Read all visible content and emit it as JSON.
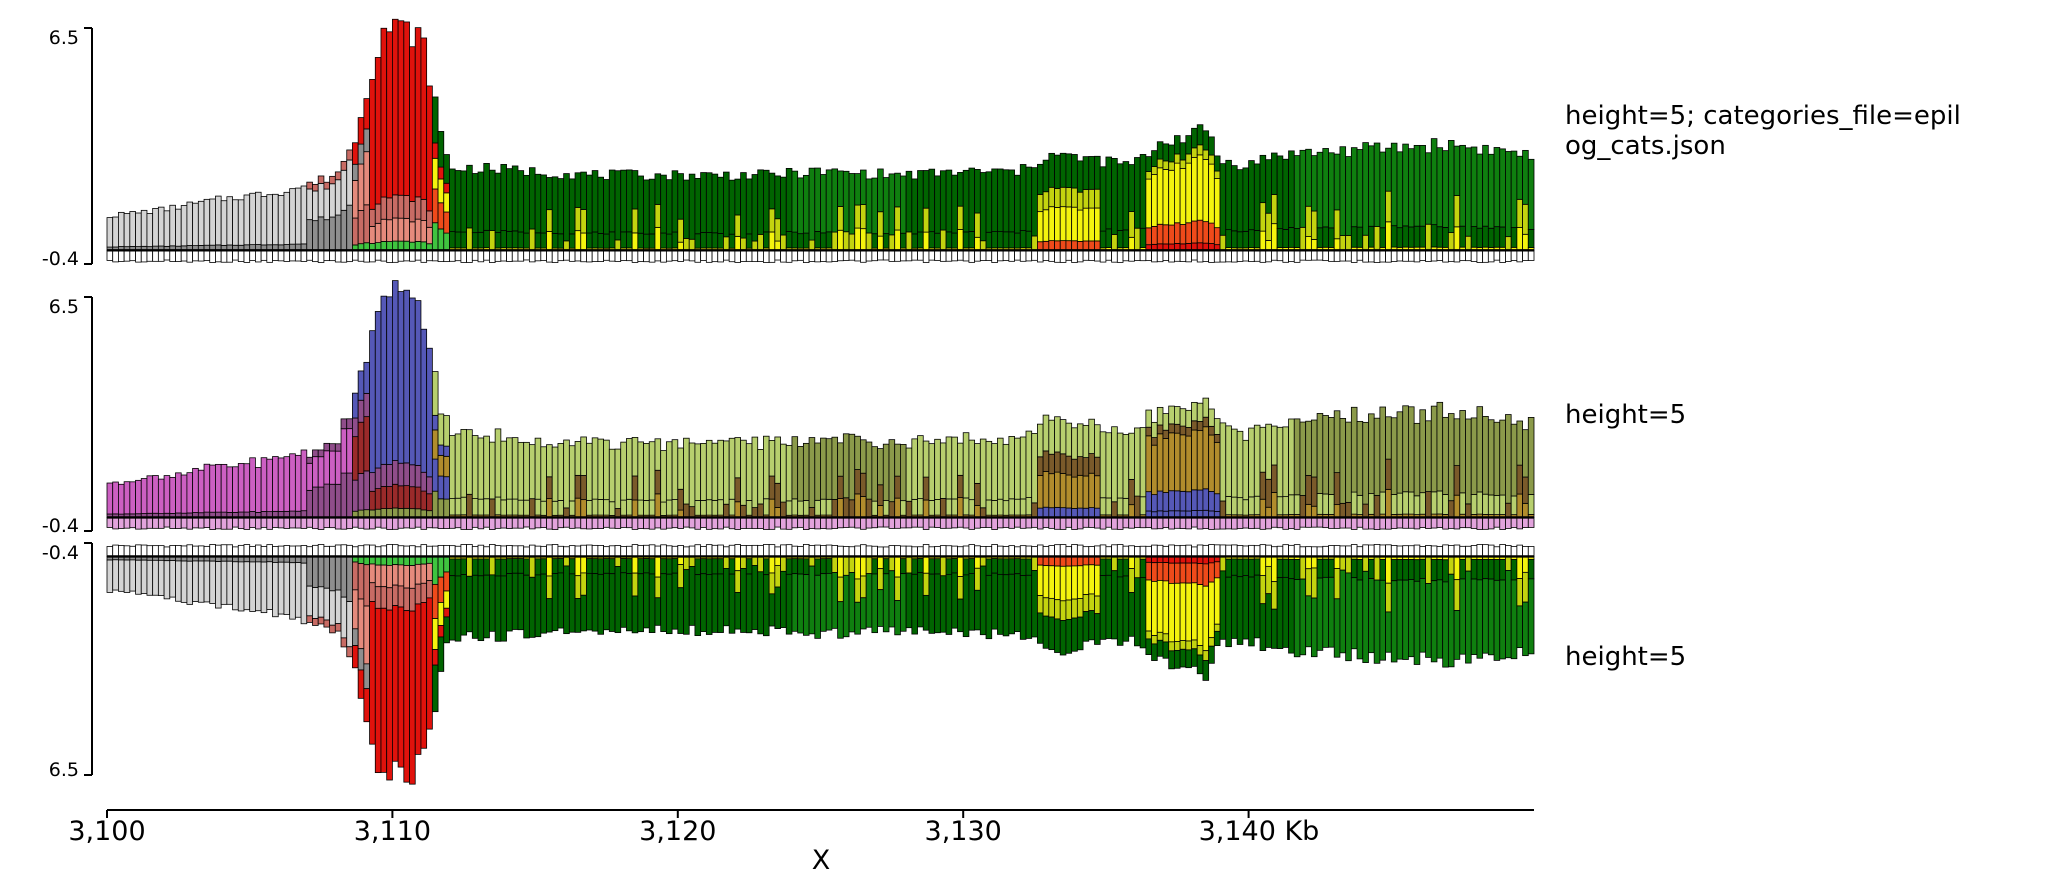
{
  "chart_data": {
    "type": "bar",
    "chart_kind": "stacked epilogos tracks (genome browser)",
    "genome_axis": {
      "xlabel": "X",
      "xlim_kb": [
        3100,
        3150
      ],
      "tick_values_kb": [
        3100,
        3110,
        3120,
        3130,
        3140
      ],
      "tick_labels": [
        "3,100",
        "3,110",
        "3,120",
        "3,130",
        "3,140 Kb"
      ]
    },
    "bin_size_kb": 0.2,
    "colors": {
      "light_gray": "#d4d4d4",
      "mid_gray": "#8e8e8e",
      "white_bar": "#ffffff",
      "pink_salmon": "#e58a7c",
      "rose": "#c86b64",
      "red": "#e0120c",
      "orange_red": "#ef4a1a",
      "light_green": "#3fc43f",
      "dark_green": "#006400",
      "green": "#0f7f0f",
      "yellow": "#f4f40e",
      "yellow_green": "#c3d30f",
      "magenta": "#cc5fc2",
      "light_magenta": "#e2a3dc",
      "purple": "#8f4d8a",
      "blue": "#5558b7",
      "olive_light": "#b7cf6e",
      "olive": "#8b9a4a",
      "brown": "#7a5a2a",
      "golden": "#b18c2c",
      "dark_red": "#9a2a2a"
    },
    "tracks": [
      {
        "title": "height=5; categories_file=epilog_cats.json",
        "title_lines": [
          "height=5; categories_file=epil",
          "og_cats.json"
        ],
        "ylim": [
          -0.4,
          6.5
        ],
        "tick_labels": [
          "6.5",
          "-0.4"
        ],
        "direction": "up",
        "palette": "categories"
      },
      {
        "title": "height=5",
        "title_lines": [
          "height=5"
        ],
        "ylim": [
          -0.4,
          6.5
        ],
        "tick_labels": [
          "6.5",
          "-0.4"
        ],
        "direction": "up",
        "palette": "default"
      },
      {
        "title": "height=5",
        "title_lines": [
          "height=5"
        ],
        "ylim": [
          -0.4,
          6.5
        ],
        "tick_labels": [
          "-0.4",
          "6.5"
        ],
        "direction": "down",
        "palette": "categories"
      }
    ],
    "profile": {
      "x_kb": [
        3100,
        3102,
        3104,
        3106,
        3107,
        3108,
        3108.6,
        3109.2,
        3109.6,
        3110,
        3110.6,
        3111,
        3111.4,
        3111.7,
        3112,
        3113,
        3115,
        3117,
        3120,
        3123,
        3125,
        3128,
        3130,
        3132,
        3133,
        3134,
        3135,
        3136,
        3137,
        3138,
        3138.6,
        3139,
        3140,
        3141,
        3143,
        3145,
        3147,
        3149.9
      ],
      "total": [
        1.0,
        1.2,
        1.5,
        1.7,
        1.9,
        2.2,
        3.0,
        5.0,
        6.4,
        6.5,
        6.4,
        6.2,
        4.8,
        3.4,
        2.4,
        2.4,
        2.3,
        2.2,
        2.2,
        2.2,
        2.3,
        2.2,
        2.3,
        2.3,
        2.8,
        2.7,
        2.6,
        2.5,
        3.2,
        3.4,
        3.5,
        2.6,
        2.5,
        2.8,
        2.9,
        3.0,
        3.1,
        2.8
      ]
    }
  }
}
